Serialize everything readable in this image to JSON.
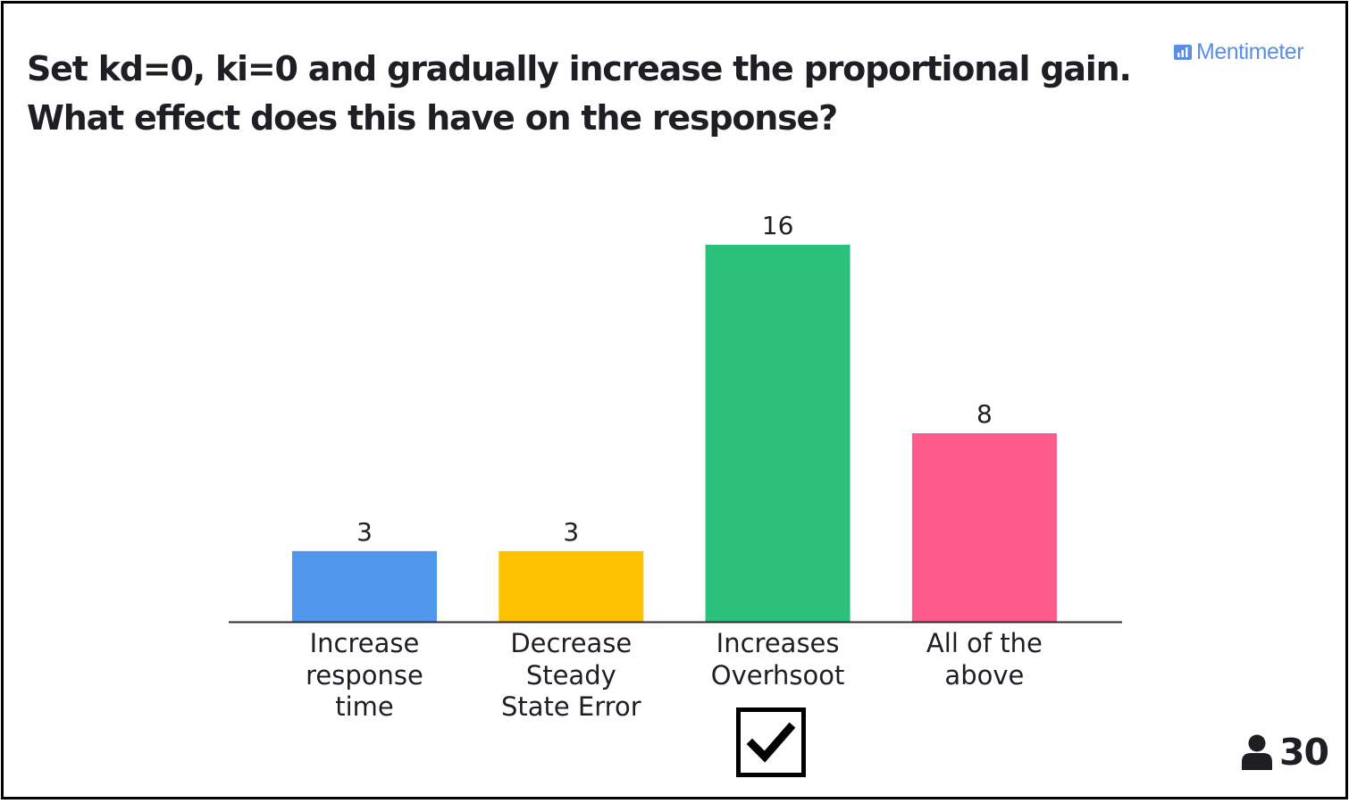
{
  "question": {
    "line1": "Set kd=0, ki=0 and gradually increase the proportional gain.",
    "line2": "What effect does this have on the response?"
  },
  "brand": {
    "name": "Mentimeter",
    "icon": "mentimeter-logo-icon",
    "color": "#5b8fe6"
  },
  "chart_data": {
    "type": "bar",
    "categories": [
      [
        "Increase",
        "response",
        "time"
      ],
      [
        "Decrease",
        "Steady",
        "State Error"
      ],
      [
        "Increases",
        "Overhsoot"
      ],
      [
        "All of the",
        "above"
      ]
    ],
    "values": [
      3,
      3,
      16,
      8
    ],
    "colors": [
      "#4f98ed",
      "#fdc302",
      "#2bc17c",
      "#ff5a8c"
    ],
    "ylim": [
      0,
      16
    ],
    "grid": false,
    "value_labels": true,
    "xlabel": "",
    "ylabel": ""
  },
  "answer": {
    "correct_index": 2,
    "mark_icon": "checkmark-icon"
  },
  "participants": {
    "icon": "person-icon",
    "count": "30"
  }
}
